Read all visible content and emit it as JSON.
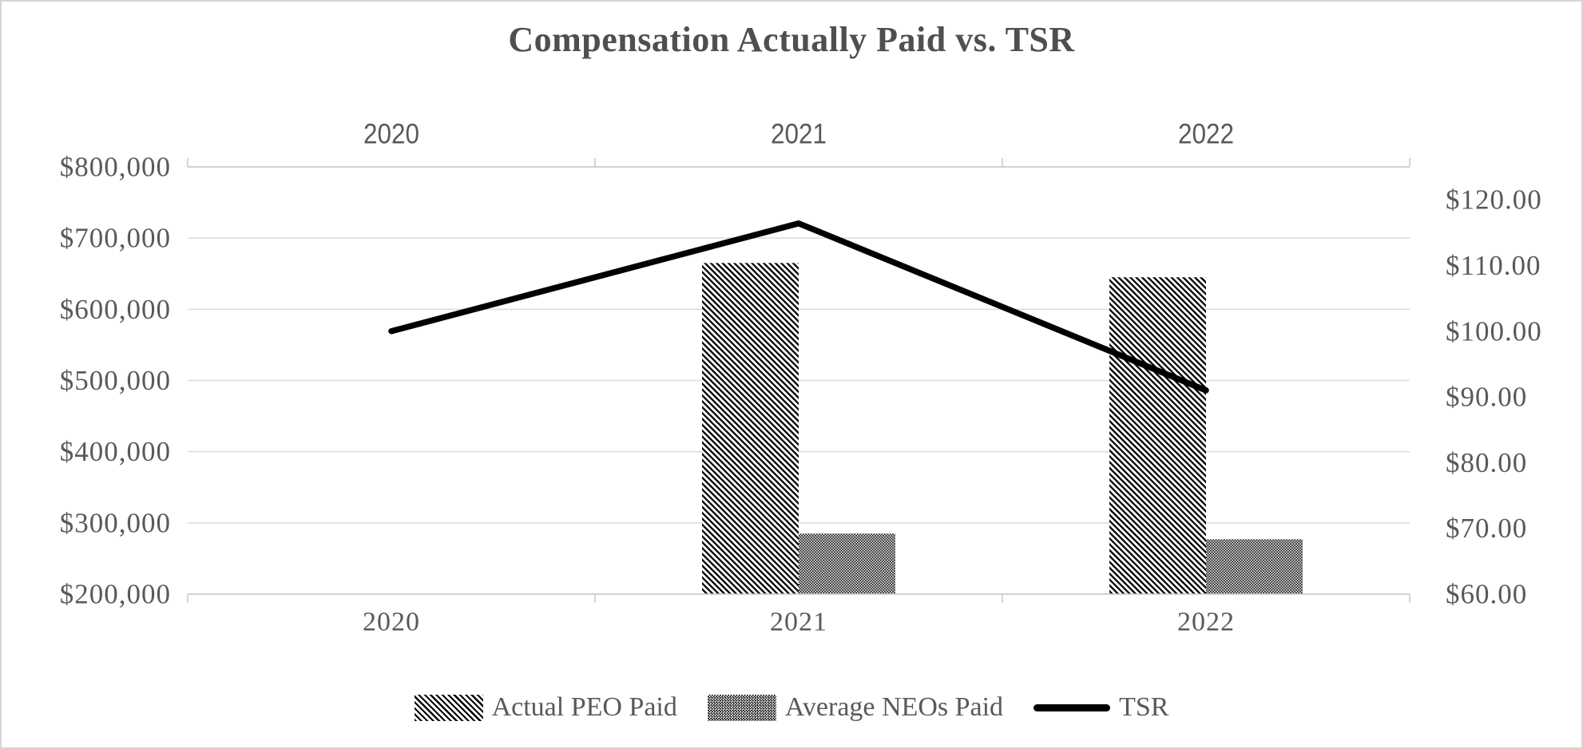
{
  "title": {
    "text": "Compensation Actually Paid vs. TSR",
    "color": "#4f4f4f"
  },
  "chart_data": {
    "type": "combo_bar_line",
    "categories": [
      "2020",
      "2021",
      "2022"
    ],
    "series": [
      {
        "name": "Actual PEO Paid",
        "type": "bar",
        "axis": "left",
        "fill": "diagonal-hatch",
        "values": [
          null,
          665000,
          645000
        ]
      },
      {
        "name": "Average NEOs Paid",
        "type": "bar",
        "axis": "left",
        "fill": "dot-checker",
        "values": [
          null,
          285000,
          277000
        ]
      },
      {
        "name": "TSR",
        "type": "line",
        "axis": "right",
        "color": "#000000",
        "values": [
          100,
          116.4,
          91
        ]
      }
    ],
    "left_axis": {
      "min": 200000,
      "max": 800000,
      "step": 100000,
      "labels_top_to_bottom": [
        "$800,000",
        "$700,000",
        "$600,000",
        "$500,000",
        "$400,000",
        "$300,000",
        "$200,000"
      ],
      "label_values_top_to_bottom": [
        800000,
        700000,
        600000,
        500000,
        400000,
        300000,
        200000
      ]
    },
    "right_axis": {
      "min": 60,
      "max": 125,
      "step": 10,
      "labels_top_to_bottom": [
        "$120.00",
        "$110.00",
        "$100.00",
        "$90.00",
        "$80.00",
        "$70.00",
        "$60.00"
      ],
      "label_values_top_to_bottom": [
        120,
        110,
        100,
        90,
        80,
        70,
        60
      ]
    },
    "x_axis_top_labels": [
      "2020",
      "2021",
      "2022"
    ],
    "x_axis_bottom_labels": [
      "2020",
      "2021",
      "2022"
    ],
    "grid": true,
    "legend_position": "bottom"
  },
  "style": {
    "grid_color": "#d9d9d9",
    "axis_color": "#c8c8c8",
    "label_color": "#595959",
    "line_color": "#000000",
    "background": "#ffffff",
    "border_color": "#d5d5d5"
  }
}
